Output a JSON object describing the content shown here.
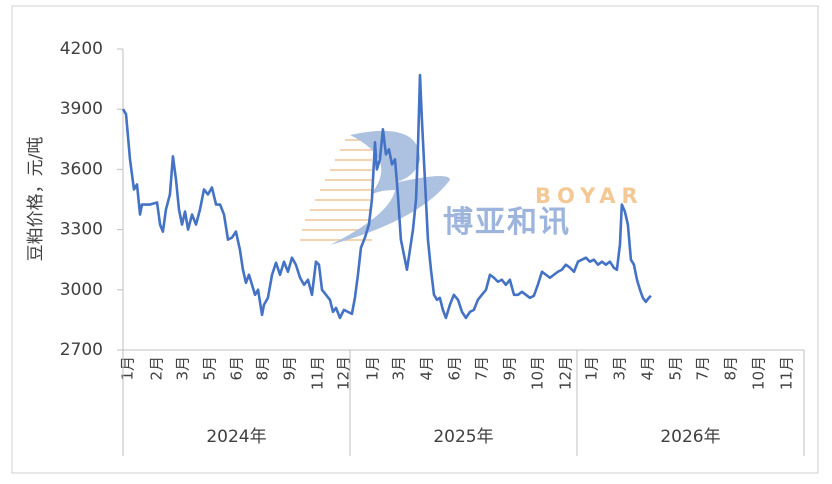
{
  "chart_data": {
    "type": "line",
    "ylabel": "豆粕价格，元/吨",
    "watermark": {
      "latin": "BOYAR",
      "chinese": "博亚和讯"
    },
    "x_groups": [
      "2024年",
      "2025年",
      "2026年"
    ],
    "xlim": [
      0,
      36
    ],
    "xticks": [
      {
        "value": 0.26,
        "label": "1月"
      },
      {
        "value": 1.8,
        "label": "2月"
      },
      {
        "value": 3.17,
        "label": "3月"
      },
      {
        "value": 4.6,
        "label": "5月"
      },
      {
        "value": 6.03,
        "label": "6月"
      },
      {
        "value": 7.4,
        "label": "8月"
      },
      {
        "value": 8.83,
        "label": "9月"
      },
      {
        "value": 10.31,
        "label": "11月"
      },
      {
        "value": 11.68,
        "label": "12月"
      },
      {
        "value": 13.21,
        "label": "1月"
      },
      {
        "value": 14.59,
        "label": "3月"
      },
      {
        "value": 16.07,
        "label": "4月"
      },
      {
        "value": 17.55,
        "label": "6月"
      },
      {
        "value": 18.97,
        "label": "7月"
      },
      {
        "value": 20.45,
        "label": "9月"
      },
      {
        "value": 21.93,
        "label": "10月"
      },
      {
        "value": 23.41,
        "label": "12月"
      },
      {
        "value": 24.79,
        "label": "1月"
      },
      {
        "value": 26.27,
        "label": "3月"
      },
      {
        "value": 27.75,
        "label": "4月"
      },
      {
        "value": 29.23,
        "label": "5月"
      },
      {
        "value": 30.66,
        "label": "7月"
      },
      {
        "value": 32.14,
        "label": "8月"
      },
      {
        "value": 33.62,
        "label": "10月"
      },
      {
        "value": 35.1,
        "label": "11月"
      }
    ],
    "ylim": [
      2700,
      4200
    ],
    "yticks": [
      2700,
      3000,
      3300,
      3600,
      3900,
      4200
    ],
    "grid": false,
    "color": "#4472c4",
    "x": [
      0,
      0.16,
      0.37,
      0.58,
      0.74,
      0.9,
      1.0,
      1.43,
      1.8,
      1.96,
      2.11,
      2.27,
      2.48,
      2.64,
      2.8,
      2.96,
      3.12,
      3.28,
      3.44,
      3.65,
      3.86,
      4.07,
      4.28,
      4.49,
      4.7,
      4.92,
      5.13,
      5.34,
      5.55,
      5.76,
      5.97,
      6.18,
      6.34,
      6.5,
      6.66,
      6.82,
      6.98,
      7.14,
      7.35,
      7.45,
      7.66,
      7.88,
      8.09,
      8.3,
      8.51,
      8.72,
      8.93,
      9.14,
      9.36,
      9.57,
      9.78,
      9.99,
      10.2,
      10.36,
      10.52,
      10.73,
      10.94,
      11.1,
      11.26,
      11.47,
      11.68,
      11.89,
      12.1,
      12.26,
      12.42,
      12.58,
      12.79,
      13.0,
      13.16,
      13.32,
      13.42,
      13.58,
      13.74,
      13.9,
      14.06,
      14.22,
      14.38,
      14.53,
      14.69,
      14.85,
      15.01,
      15.17,
      15.33,
      15.49,
      15.59,
      15.7,
      15.8,
      15.96,
      16.12,
      16.28,
      16.44,
      16.6,
      16.75,
      16.91,
      17.07,
      17.28,
      17.49,
      17.71,
      17.92,
      18.13,
      18.34,
      18.55,
      18.76,
      18.97,
      19.19,
      19.4,
      19.61,
      19.82,
      20.03,
      20.24,
      20.45,
      20.67,
      20.88,
      21.09,
      21.3,
      21.51,
      21.72,
      21.93,
      22.15,
      22.36,
      22.57,
      22.78,
      22.99,
      23.2,
      23.41,
      23.63,
      23.84,
      24.05,
      24.26,
      24.47,
      24.68,
      24.89,
      25.11,
      25.32,
      25.53,
      25.74,
      25.95,
      26.11,
      26.27,
      26.37,
      26.53,
      26.69,
      26.85,
      27.01,
      27.17,
      27.33,
      27.48,
      27.64,
      27.8,
      27.91
    ],
    "values": [
      3900,
      3875,
      3650,
      3500,
      3525,
      3375,
      3425,
      3425,
      3435,
      3325,
      3290,
      3400,
      3475,
      3665,
      3550,
      3400,
      3325,
      3390,
      3300,
      3375,
      3325,
      3400,
      3500,
      3475,
      3510,
      3425,
      3425,
      3375,
      3250,
      3260,
      3290,
      3200,
      3100,
      3035,
      3075,
      3025,
      2975,
      3000,
      2875,
      2925,
      2960,
      3075,
      3135,
      3075,
      3140,
      3090,
      3160,
      3125,
      3060,
      3025,
      3050,
      2975,
      3140,
      3125,
      3000,
      2975,
      2950,
      2890,
      2910,
      2860,
      2900,
      2890,
      2880,
      2960,
      3075,
      3210,
      3260,
      3325,
      3450,
      3735,
      3600,
      3650,
      3800,
      3675,
      3700,
      3625,
      3650,
      3475,
      3250,
      3175,
      3100,
      3200,
      3300,
      3450,
      3700,
      4070,
      3850,
      3550,
      3250,
      3100,
      2975,
      2950,
      2960,
      2900,
      2860,
      2925,
      2975,
      2950,
      2890,
      2860,
      2890,
      2900,
      2950,
      2975,
      3000,
      3075,
      3060,
      3040,
      3050,
      3025,
      3050,
      2975,
      2975,
      2990,
      2975,
      2960,
      2970,
      3025,
      3090,
      3075,
      3060,
      3075,
      3090,
      3100,
      3125,
      3110,
      3090,
      3140,
      3150,
      3160,
      3140,
      3150,
      3125,
      3140,
      3125,
      3140,
      3110,
      3100,
      3225,
      3425,
      3390,
      3325,
      3150,
      3125,
      3050,
      3000,
      2960,
      2940,
      2960,
      2970
    ]
  }
}
